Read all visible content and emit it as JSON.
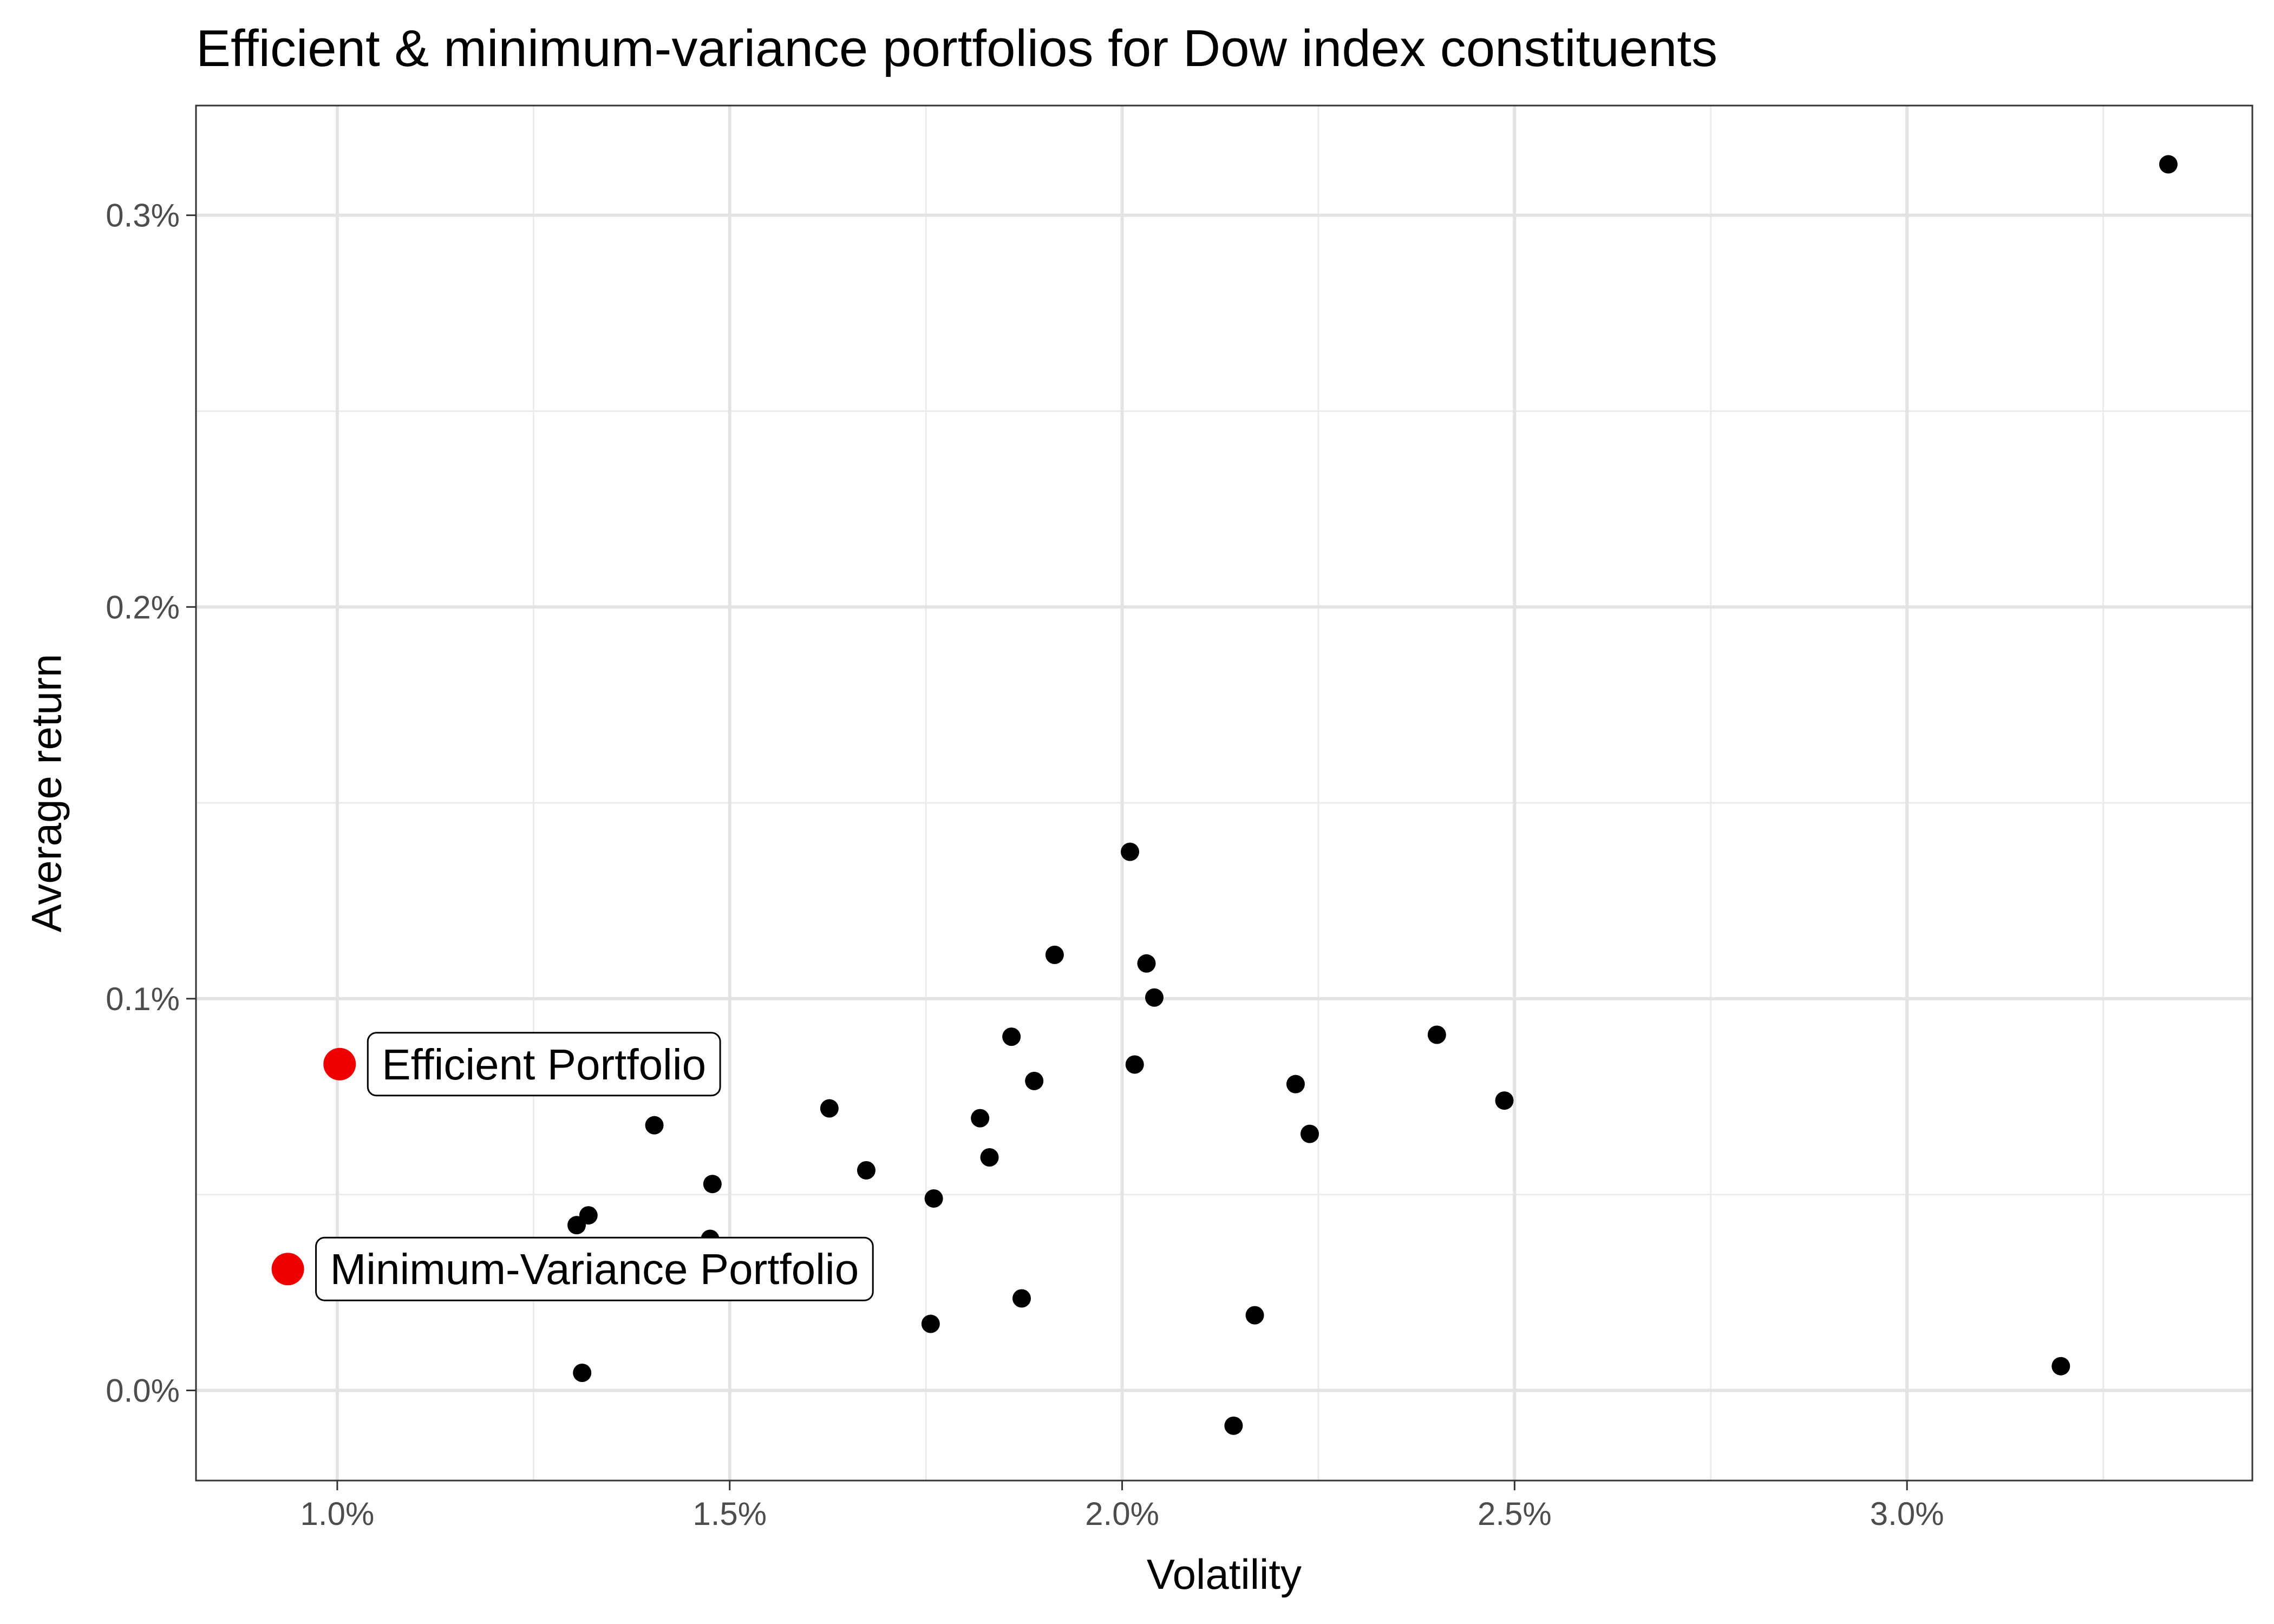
{
  "chart_data": {
    "type": "scatter",
    "title": "Efficient & minimum-variance portfolios for Dow index constituents",
    "xlabel": "Volatility",
    "ylabel": "Average return",
    "xlim": [
      0.0082,
      0.0344
    ],
    "ylim": [
      -0.00023,
      0.00328
    ],
    "x_ticks": [
      0.01,
      0.015,
      0.02,
      0.025,
      0.03
    ],
    "x_tick_labels": [
      "1.0%",
      "1.5%",
      "2.0%",
      "2.5%",
      "3.0%"
    ],
    "y_ticks": [
      0.0,
      0.001,
      0.002,
      0.003
    ],
    "y_tick_labels": [
      "0.0%",
      "0.1%",
      "0.2%",
      "0.3%"
    ],
    "grid": true,
    "point_color": "#000000",
    "highlight_color": "#ee0000",
    "series": [
      {
        "points": [
          {
            "x": 0.03333,
            "y": 0.00313
          },
          {
            "x": 0.0201,
            "y": 0.001375
          },
          {
            "x": 0.01914,
            "y": 0.001112
          },
          {
            "x": 0.02031,
            "y": 0.00109
          },
          {
            "x": 0.02041,
            "y": 0.001003
          },
          {
            "x": 0.01859,
            "y": 0.000903
          },
          {
            "x": 0.02401,
            "y": 0.000908
          },
          {
            "x": 0.02016,
            "y": 0.000832
          },
          {
            "x": 0.01888,
            "y": 0.00079
          },
          {
            "x": 0.02221,
            "y": 0.000782
          },
          {
            "x": 0.02487,
            "y": 0.00074
          },
          {
            "x": 0.01627,
            "y": 0.00072
          },
          {
            "x": 0.01819,
            "y": 0.000695
          },
          {
            "x": 0.01404,
            "y": 0.000677
          },
          {
            "x": 0.02239,
            "y": 0.000655
          },
          {
            "x": 0.01831,
            "y": 0.000595
          },
          {
            "x": 0.01674,
            "y": 0.000562
          },
          {
            "x": 0.01478,
            "y": 0.000527
          },
          {
            "x": 0.0176,
            "y": 0.00049
          },
          {
            "x": 0.0132,
            "y": 0.000447
          },
          {
            "x": 0.01305,
            "y": 0.000422
          },
          {
            "x": 0.01475,
            "y": 0.000387
          },
          {
            "x": 0.01872,
            "y": 0.000235
          },
          {
            "x": 0.02169,
            "y": 0.000192
          },
          {
            "x": 0.01756,
            "y": 0.00017
          },
          {
            "x": 0.01312,
            "y": 4.5e-05
          },
          {
            "x": 0.03196,
            "y": 6.2e-05
          },
          {
            "x": 0.02142,
            "y": -9e-05
          }
        ]
      }
    ],
    "highlights": [
      {
        "label": "Efficient Portfolio",
        "x": 0.01003,
        "y": 0.000833
      },
      {
        "label": "Minimum-Variance Portfolio",
        "x": 0.00937,
        "y": 0.00031
      }
    ]
  }
}
